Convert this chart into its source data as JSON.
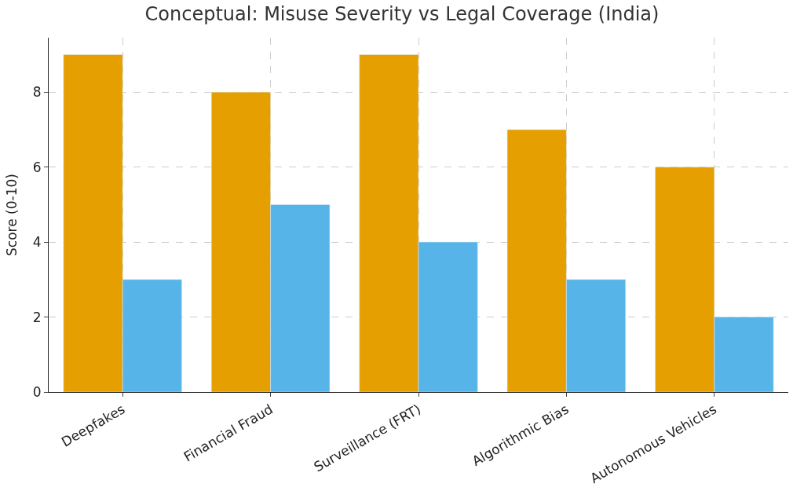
{
  "chart_data": {
    "type": "bar",
    "title": "Conceptual: Misuse Severity vs Legal Coverage (India)",
    "ylabel": "Score (0-10)",
    "categories": [
      "Deepfakes",
      "Financial Fraud",
      "Surveillance (FRT)",
      "Algorithmic Bias",
      "Autonomous Vehicles"
    ],
    "series": [
      {
        "color": "#e69f00",
        "values": [
          9,
          8,
          9,
          7,
          6
        ]
      },
      {
        "color": "#56b4e9",
        "values": [
          3,
          5,
          4,
          3,
          2
        ]
      }
    ],
    "ylim": [
      0,
      9.45
    ],
    "yticks": [
      0,
      2,
      4,
      6,
      8
    ],
    "grid": true
  }
}
